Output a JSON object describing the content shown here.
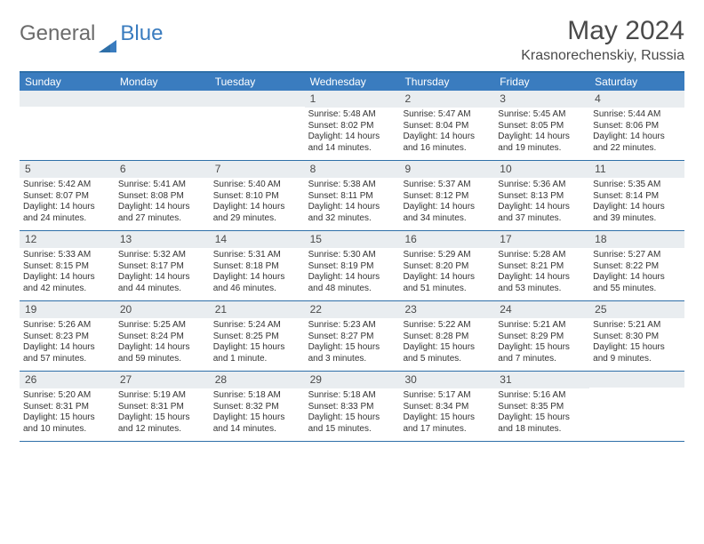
{
  "logo": {
    "part1": "General",
    "part2": "Blue"
  },
  "title": "May 2024",
  "location": "Krasnorechenskiy, Russia",
  "colors": {
    "header_bg": "#3a7cbf",
    "header_border": "#2e6fa8",
    "daynum_bg": "#e9edf0",
    "text": "#333333",
    "logo_gray": "#6b6b6b",
    "logo_blue": "#3a7cbf"
  },
  "day_names": [
    "Sunday",
    "Monday",
    "Tuesday",
    "Wednesday",
    "Thursday",
    "Friday",
    "Saturday"
  ],
  "weeks": [
    [
      {
        "n": "",
        "sr": "",
        "ss": "",
        "dl": ""
      },
      {
        "n": "",
        "sr": "",
        "ss": "",
        "dl": ""
      },
      {
        "n": "",
        "sr": "",
        "ss": "",
        "dl": ""
      },
      {
        "n": "1",
        "sr": "Sunrise: 5:48 AM",
        "ss": "Sunset: 8:02 PM",
        "dl": "Daylight: 14 hours and 14 minutes."
      },
      {
        "n": "2",
        "sr": "Sunrise: 5:47 AM",
        "ss": "Sunset: 8:04 PM",
        "dl": "Daylight: 14 hours and 16 minutes."
      },
      {
        "n": "3",
        "sr": "Sunrise: 5:45 AM",
        "ss": "Sunset: 8:05 PM",
        "dl": "Daylight: 14 hours and 19 minutes."
      },
      {
        "n": "4",
        "sr": "Sunrise: 5:44 AM",
        "ss": "Sunset: 8:06 PM",
        "dl": "Daylight: 14 hours and 22 minutes."
      }
    ],
    [
      {
        "n": "5",
        "sr": "Sunrise: 5:42 AM",
        "ss": "Sunset: 8:07 PM",
        "dl": "Daylight: 14 hours and 24 minutes."
      },
      {
        "n": "6",
        "sr": "Sunrise: 5:41 AM",
        "ss": "Sunset: 8:08 PM",
        "dl": "Daylight: 14 hours and 27 minutes."
      },
      {
        "n": "7",
        "sr": "Sunrise: 5:40 AM",
        "ss": "Sunset: 8:10 PM",
        "dl": "Daylight: 14 hours and 29 minutes."
      },
      {
        "n": "8",
        "sr": "Sunrise: 5:38 AM",
        "ss": "Sunset: 8:11 PM",
        "dl": "Daylight: 14 hours and 32 minutes."
      },
      {
        "n": "9",
        "sr": "Sunrise: 5:37 AM",
        "ss": "Sunset: 8:12 PM",
        "dl": "Daylight: 14 hours and 34 minutes."
      },
      {
        "n": "10",
        "sr": "Sunrise: 5:36 AM",
        "ss": "Sunset: 8:13 PM",
        "dl": "Daylight: 14 hours and 37 minutes."
      },
      {
        "n": "11",
        "sr": "Sunrise: 5:35 AM",
        "ss": "Sunset: 8:14 PM",
        "dl": "Daylight: 14 hours and 39 minutes."
      }
    ],
    [
      {
        "n": "12",
        "sr": "Sunrise: 5:33 AM",
        "ss": "Sunset: 8:15 PM",
        "dl": "Daylight: 14 hours and 42 minutes."
      },
      {
        "n": "13",
        "sr": "Sunrise: 5:32 AM",
        "ss": "Sunset: 8:17 PM",
        "dl": "Daylight: 14 hours and 44 minutes."
      },
      {
        "n": "14",
        "sr": "Sunrise: 5:31 AM",
        "ss": "Sunset: 8:18 PM",
        "dl": "Daylight: 14 hours and 46 minutes."
      },
      {
        "n": "15",
        "sr": "Sunrise: 5:30 AM",
        "ss": "Sunset: 8:19 PM",
        "dl": "Daylight: 14 hours and 48 minutes."
      },
      {
        "n": "16",
        "sr": "Sunrise: 5:29 AM",
        "ss": "Sunset: 8:20 PM",
        "dl": "Daylight: 14 hours and 51 minutes."
      },
      {
        "n": "17",
        "sr": "Sunrise: 5:28 AM",
        "ss": "Sunset: 8:21 PM",
        "dl": "Daylight: 14 hours and 53 minutes."
      },
      {
        "n": "18",
        "sr": "Sunrise: 5:27 AM",
        "ss": "Sunset: 8:22 PM",
        "dl": "Daylight: 14 hours and 55 minutes."
      }
    ],
    [
      {
        "n": "19",
        "sr": "Sunrise: 5:26 AM",
        "ss": "Sunset: 8:23 PM",
        "dl": "Daylight: 14 hours and 57 minutes."
      },
      {
        "n": "20",
        "sr": "Sunrise: 5:25 AM",
        "ss": "Sunset: 8:24 PM",
        "dl": "Daylight: 14 hours and 59 minutes."
      },
      {
        "n": "21",
        "sr": "Sunrise: 5:24 AM",
        "ss": "Sunset: 8:25 PM",
        "dl": "Daylight: 15 hours and 1 minute."
      },
      {
        "n": "22",
        "sr": "Sunrise: 5:23 AM",
        "ss": "Sunset: 8:27 PM",
        "dl": "Daylight: 15 hours and 3 minutes."
      },
      {
        "n": "23",
        "sr": "Sunrise: 5:22 AM",
        "ss": "Sunset: 8:28 PM",
        "dl": "Daylight: 15 hours and 5 minutes."
      },
      {
        "n": "24",
        "sr": "Sunrise: 5:21 AM",
        "ss": "Sunset: 8:29 PM",
        "dl": "Daylight: 15 hours and 7 minutes."
      },
      {
        "n": "25",
        "sr": "Sunrise: 5:21 AM",
        "ss": "Sunset: 8:30 PM",
        "dl": "Daylight: 15 hours and 9 minutes."
      }
    ],
    [
      {
        "n": "26",
        "sr": "Sunrise: 5:20 AM",
        "ss": "Sunset: 8:31 PM",
        "dl": "Daylight: 15 hours and 10 minutes."
      },
      {
        "n": "27",
        "sr": "Sunrise: 5:19 AM",
        "ss": "Sunset: 8:31 PM",
        "dl": "Daylight: 15 hours and 12 minutes."
      },
      {
        "n": "28",
        "sr": "Sunrise: 5:18 AM",
        "ss": "Sunset: 8:32 PM",
        "dl": "Daylight: 15 hours and 14 minutes."
      },
      {
        "n": "29",
        "sr": "Sunrise: 5:18 AM",
        "ss": "Sunset: 8:33 PM",
        "dl": "Daylight: 15 hours and 15 minutes."
      },
      {
        "n": "30",
        "sr": "Sunrise: 5:17 AM",
        "ss": "Sunset: 8:34 PM",
        "dl": "Daylight: 15 hours and 17 minutes."
      },
      {
        "n": "31",
        "sr": "Sunrise: 5:16 AM",
        "ss": "Sunset: 8:35 PM",
        "dl": "Daylight: 15 hours and 18 minutes."
      },
      {
        "n": "",
        "sr": "",
        "ss": "",
        "dl": ""
      }
    ]
  ]
}
